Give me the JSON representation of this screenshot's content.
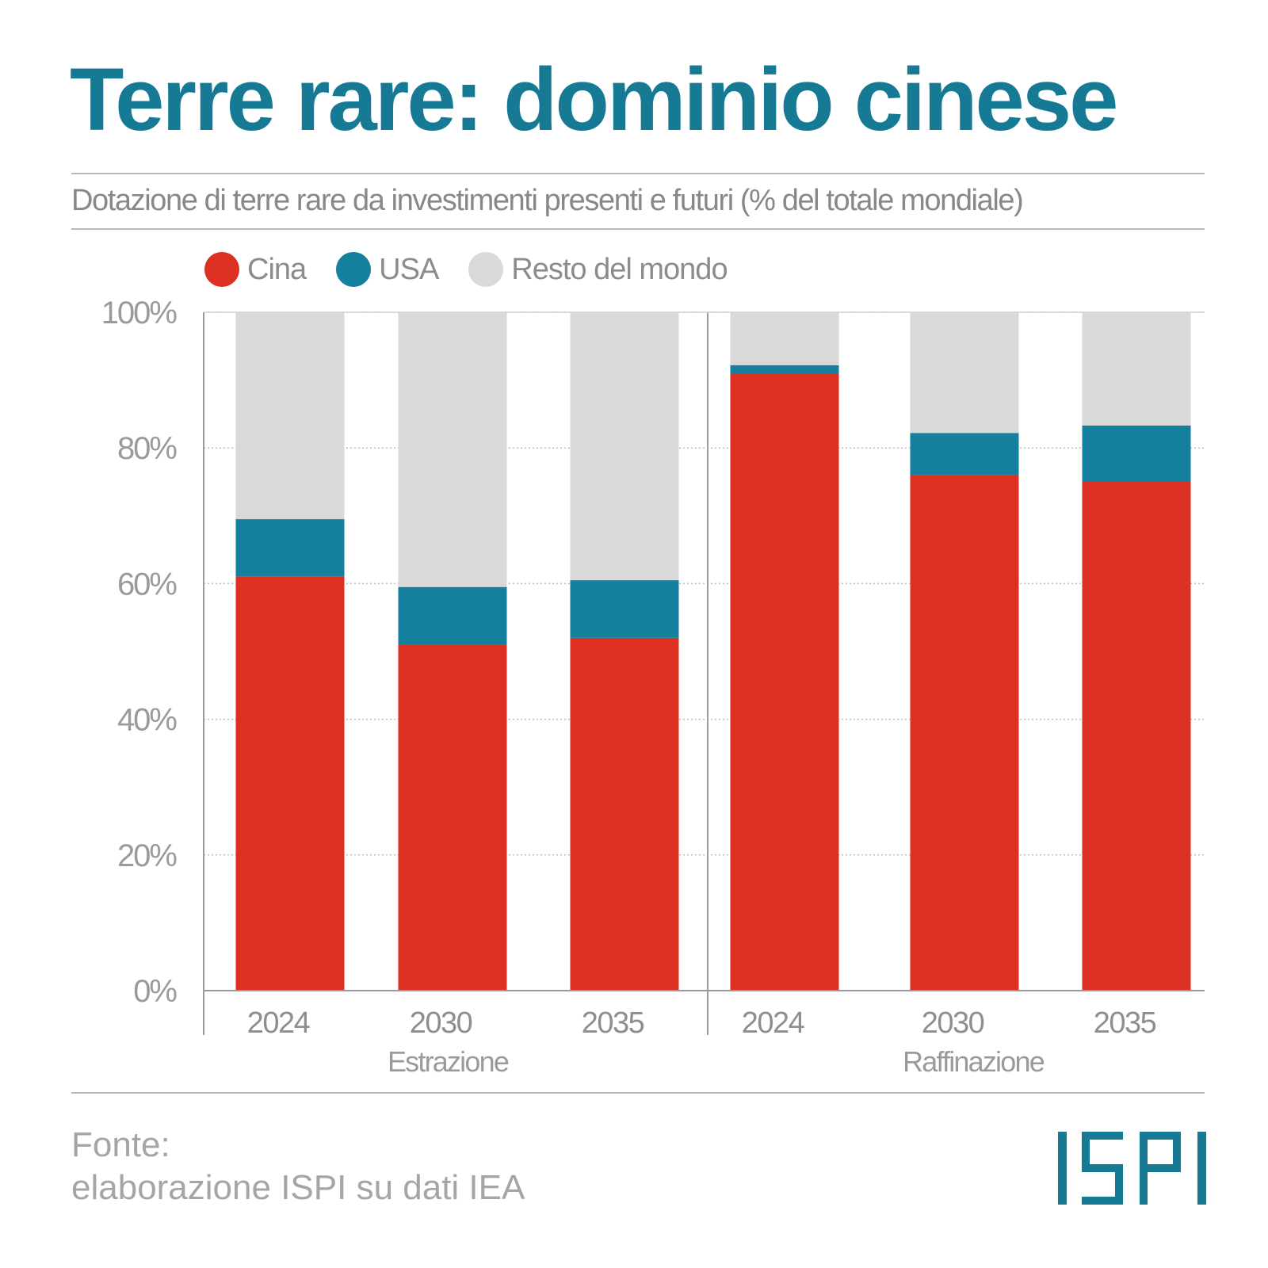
{
  "title": "Terre rare: dominio cinese",
  "subtitle": "Dotazione di terre rare da investimenti presenti e futuri (% del totale mondiale)",
  "legend": [
    {
      "label": "Cina",
      "color": "#dc3022"
    },
    {
      "label": "USA",
      "color": "#15809e"
    },
    {
      "label": "Resto del mondo",
      "color": "#d9d9d9"
    }
  ],
  "source": {
    "line1": "Fonte:",
    "line2": "elaborazione ISPI su dati IEA"
  },
  "logo": {
    "text": "ISPI",
    "color": "#177a95"
  },
  "chart_data": {
    "type": "bar",
    "stacked": true,
    "ylim": [
      0,
      100
    ],
    "yticks": [
      "0%",
      "20%",
      "40%",
      "60%",
      "80%",
      "100%"
    ],
    "grid": true,
    "legend_position": "top-left",
    "groups": [
      {
        "label": "Estrazione",
        "categories": [
          "2024",
          "2030",
          "2035"
        ]
      },
      {
        "label": "Raffinazione",
        "categories": [
          "2024",
          "2030",
          "2035"
        ]
      }
    ],
    "series": [
      {
        "name": "Cina",
        "color": "#dc3022",
        "values": [
          61,
          51,
          52,
          91,
          76,
          75
        ]
      },
      {
        "name": "USA",
        "color": "#15809e",
        "values": [
          8.5,
          8.5,
          8.5,
          1.2,
          6.2,
          8.3
        ]
      },
      {
        "name": "Resto del mondo",
        "color": "#d9d9d9",
        "values": [
          30.5,
          40.5,
          39.5,
          7.8,
          17.8,
          16.7
        ]
      }
    ]
  }
}
